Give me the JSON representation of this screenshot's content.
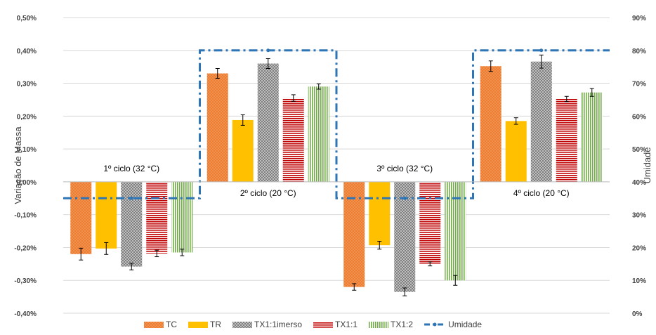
{
  "chart_data": {
    "type": "bar",
    "categories": [
      "1º ciclo (32 °C)",
      "2º ciclo (20 °C)",
      "3º ciclo (32 °C)",
      "4º ciclo (20 °C)"
    ],
    "ylabel": "Variação de Massa",
    "y2label": "Umidade",
    "ylim": [
      -0.4,
      0.5
    ],
    "y2lim": [
      0,
      90
    ],
    "y_ticks": [
      "0,50%",
      "0,40%",
      "0,30%",
      "0,20%",
      "0,10%",
      "0,00%",
      "-0,10%",
      "-0,20%",
      "-0,30%",
      "-0,40%"
    ],
    "y2_ticks": [
      "90%",
      "80%",
      "70%",
      "60%",
      "50%",
      "40%",
      "30%",
      "20%",
      "10%",
      "0%"
    ],
    "grid": true,
    "legend_position": "bottom",
    "series": [
      {
        "name": "TC",
        "color": "#ED7D31",
        "pattern": "dots",
        "values": [
          -0.22,
          0.33,
          -0.32,
          0.352
        ],
        "errors": [
          0.018,
          0.015,
          0.01,
          0.016
        ]
      },
      {
        "name": "TR",
        "color": "#FFC000",
        "pattern": "solid",
        "values": [
          -0.203,
          0.188,
          -0.193,
          0.185
        ],
        "errors": [
          0.018,
          0.016,
          0.012,
          0.01
        ]
      },
      {
        "name": "TX1:1imerso",
        "color": "#A6A6A6",
        "pattern": "checker",
        "values": [
          -0.258,
          0.36,
          -0.335,
          0.366
        ],
        "errors": [
          0.01,
          0.015,
          0.012,
          0.02
        ]
      },
      {
        "name": "TX1:1",
        "color": "#C00000",
        "pattern": "hlines",
        "values": [
          -0.218,
          0.255,
          -0.25,
          0.252
        ],
        "errors": [
          0.01,
          0.01,
          0.006,
          0.008
        ]
      },
      {
        "name": "TX1:2",
        "color": "#70AD47",
        "pattern": "vlines",
        "values": [
          -0.215,
          0.29,
          -0.3,
          0.272
        ],
        "errors": [
          0.01,
          0.008,
          0.015,
          0.012
        ]
      }
    ],
    "line_series": {
      "name": "Umidade",
      "axis": "right",
      "color": "#2E75B6",
      "style": "dash-dot",
      "values": [
        35,
        80,
        35,
        80
      ]
    }
  }
}
